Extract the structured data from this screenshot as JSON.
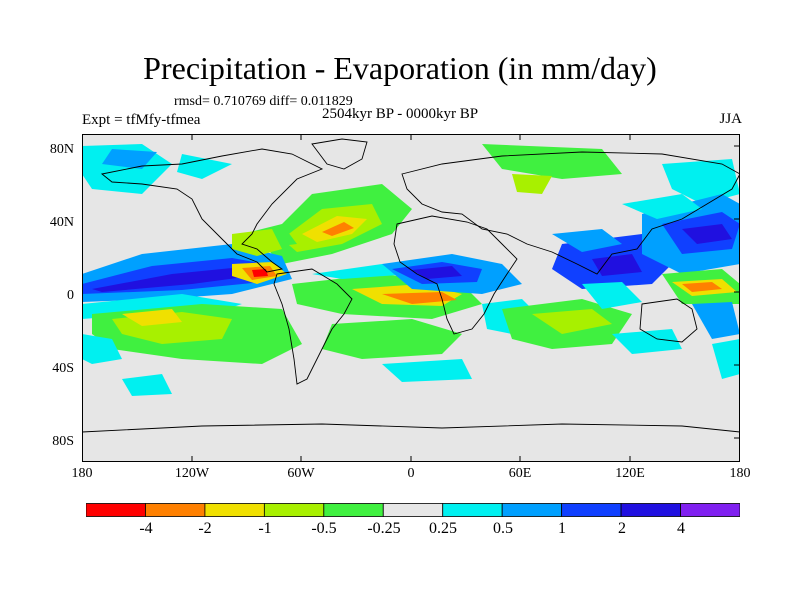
{
  "title": "Precipitation - Evaporation (in mm/day)",
  "stats_line": "rmsd= 0.710769 diff= 0.011829",
  "period": "2504kyr BP - 0000kyr BP",
  "experiment": "Expt = tfMfy-tfmea",
  "season": "JJA",
  "lat_labels": [
    "80N",
    "40N",
    "0",
    "40S",
    "80S"
  ],
  "lon_labels": [
    "180",
    "120W",
    "60W",
    "0",
    "60E",
    "120E",
    "180"
  ],
  "colorbar": {
    "labels": [
      "-4",
      "-2",
      "-1",
      "-0.5",
      "-0.25",
      "0.25",
      "0.5",
      "1",
      "2",
      "4"
    ],
    "colors": [
      "#ff0000",
      "#ff8000",
      "#f0e000",
      "#a8f000",
      "#40f040",
      "#e6e6e6",
      "#00f0f0",
      "#00a0ff",
      "#1040ff",
      "#2010e0",
      "#8020f0"
    ]
  }
}
